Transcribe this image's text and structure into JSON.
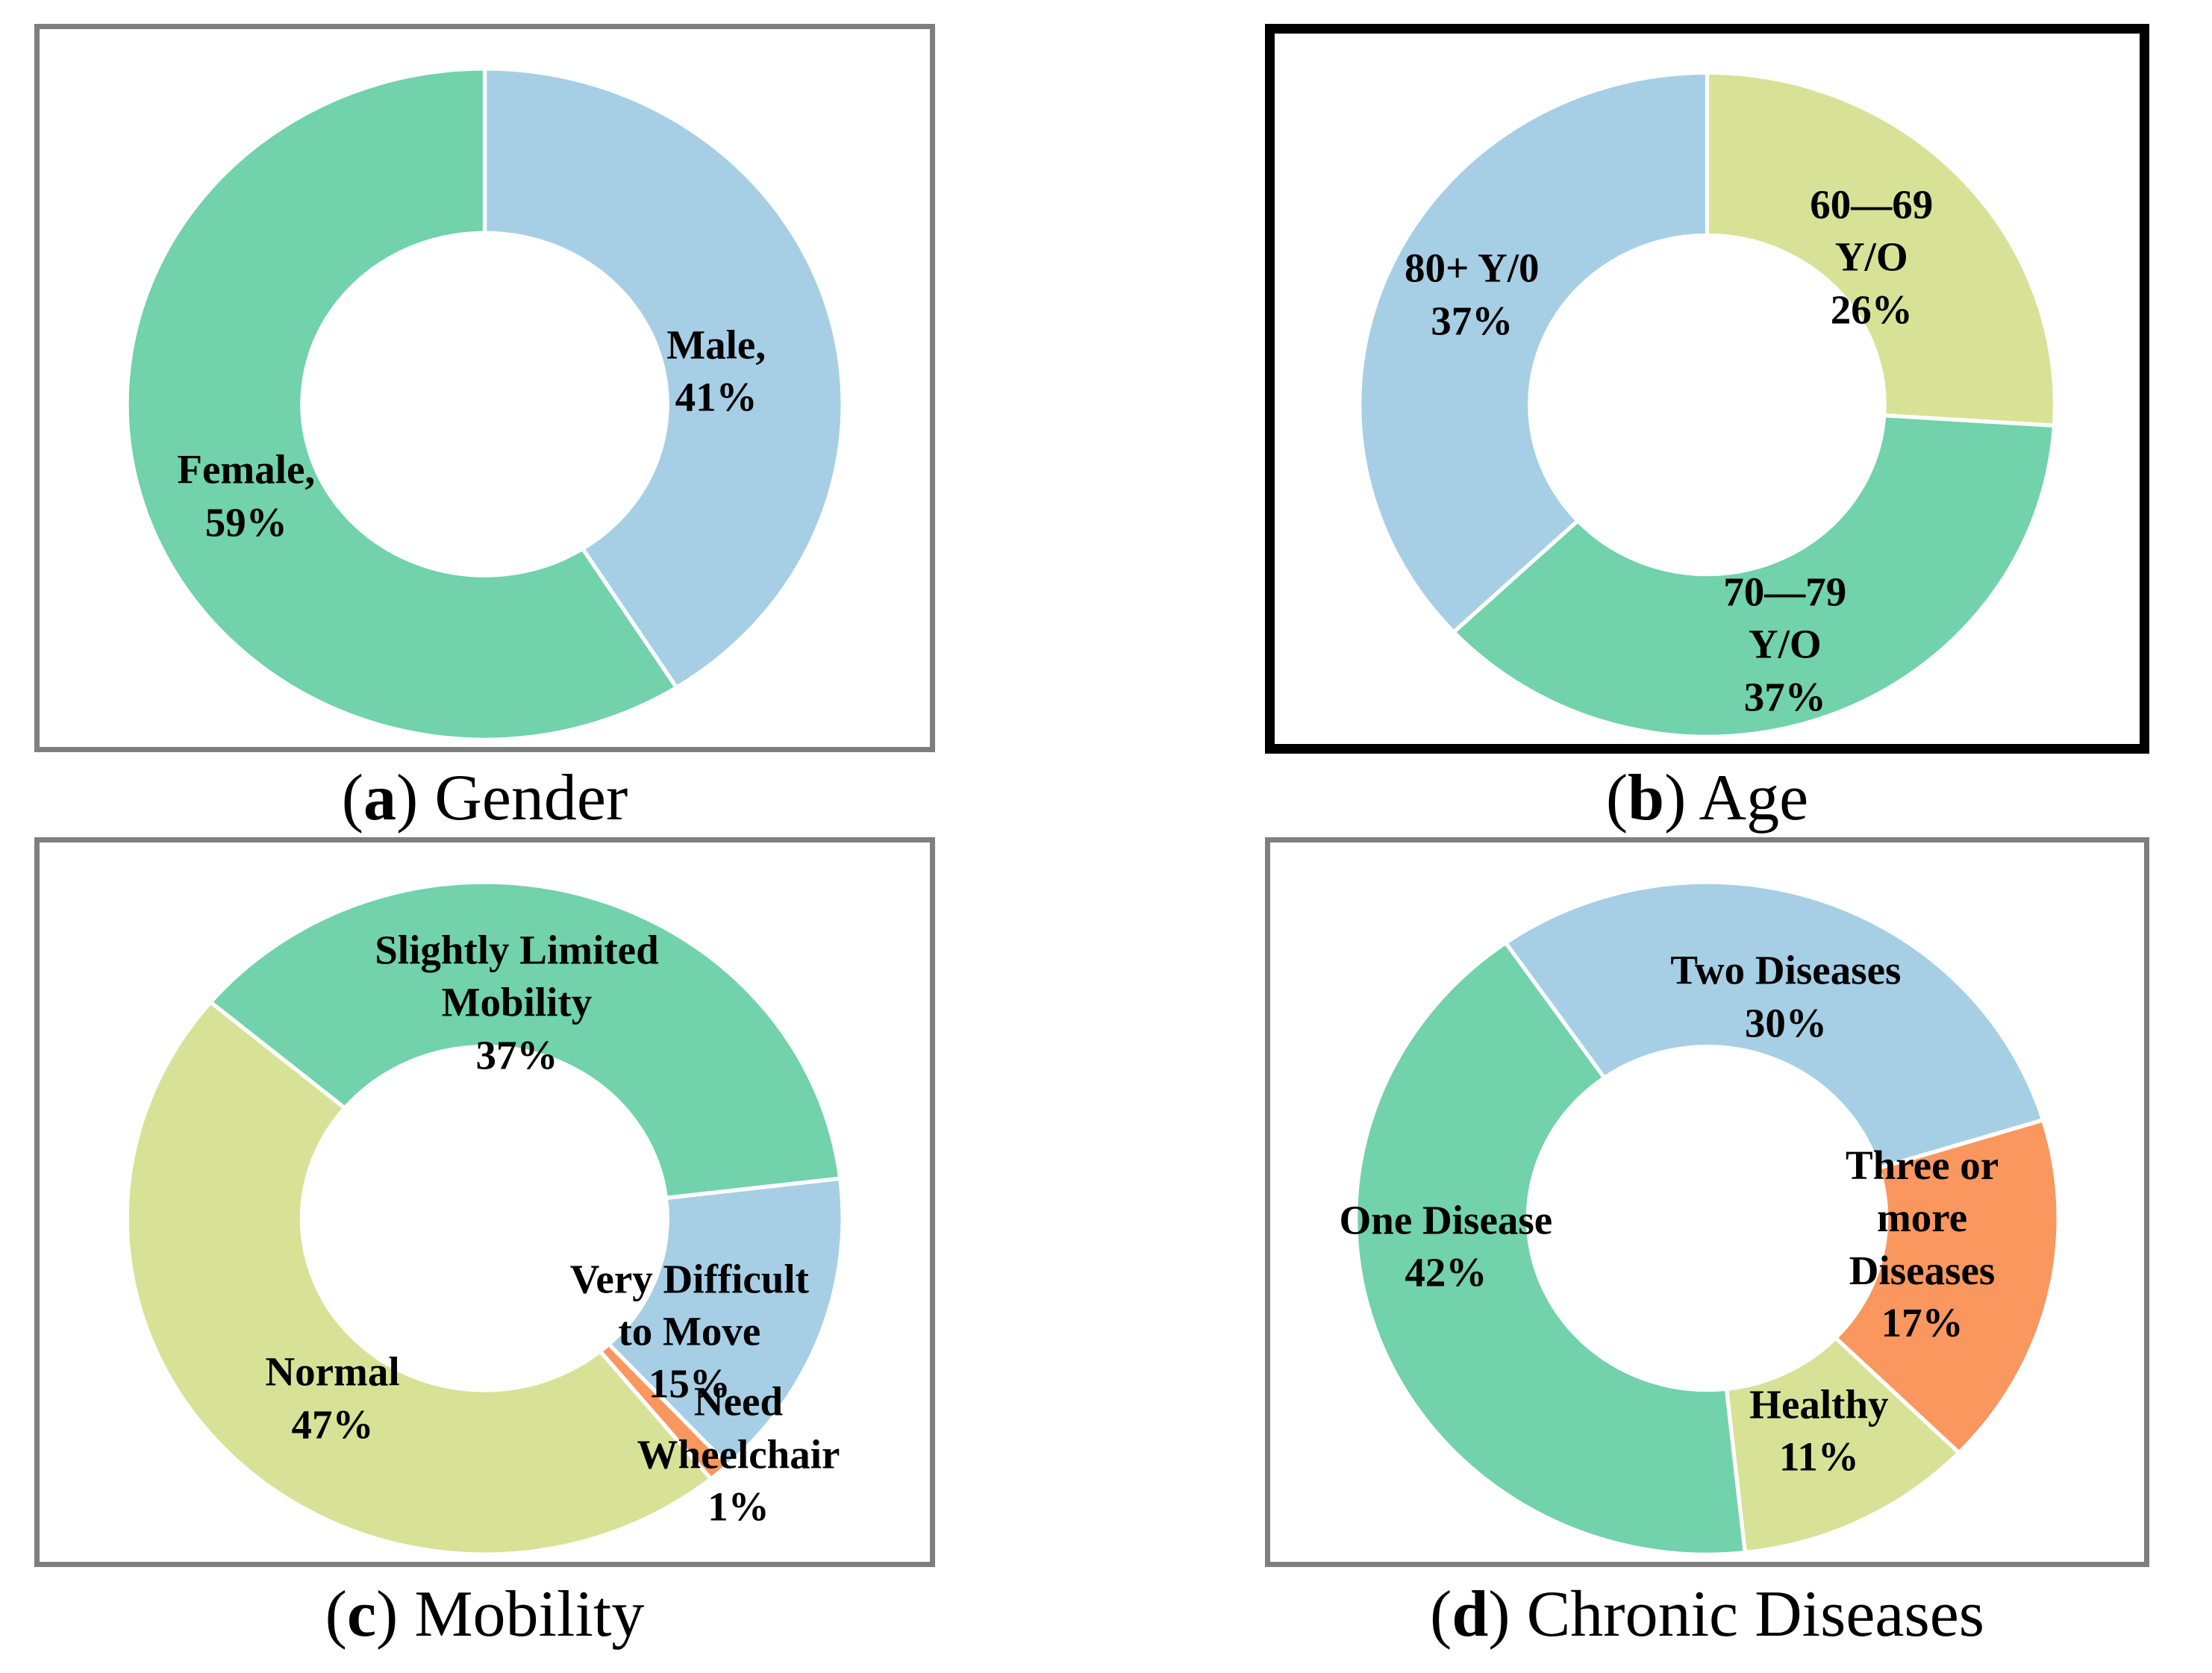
{
  "page": {
    "background": "#ffffff",
    "text_color": "#000000"
  },
  "palette": {
    "blue": "#A6CFE5",
    "green": "#71D2AB",
    "yellow_green": "#D8E297",
    "orange": "#F9975F",
    "frame_gray": "#7E7E7E",
    "frame_black": "#000000"
  },
  "chart_data": [
    {
      "id": "gender",
      "type": "pie",
      "donut": true,
      "title": "Gender",
      "caption": {
        "open": "(",
        "letter": "a",
        "close": ") ",
        "title": "Gender"
      },
      "frame": {
        "color": "#7E7E7E",
        "width": 7
      },
      "start_angle": 0,
      "hole_ratio": 0.51,
      "legend": "none",
      "segments": [
        {
          "label": "Male",
          "value_pct": 41,
          "color": "#A6CFE5",
          "label_lines": [
            "Male,",
            "41%"
          ],
          "label_xy": [
            0.76,
            0.477
          ]
        },
        {
          "label": "Female",
          "value_pct": 59,
          "color": "#71D2AB",
          "label_lines": [
            "Female,",
            "59%"
          ],
          "label_xy": [
            0.232,
            0.651
          ]
        }
      ]
    },
    {
      "id": "age",
      "type": "pie",
      "donut": true,
      "title": "Age",
      "caption": {
        "open": "(",
        "letter": "b",
        "close": ") ",
        "title": "Age"
      },
      "frame": {
        "color": "#000000",
        "width": 13
      },
      "start_angle": 0,
      "hole_ratio": 0.51,
      "legend": "none",
      "segments": [
        {
          "label": "60-69 Y/O",
          "value_pct": 26,
          "color": "#D8E297",
          "label_lines": [
            "60—69",
            "Y/O",
            "26%"
          ],
          "label_xy": [
            0.69,
            0.315
          ]
        },
        {
          "label": "70-79 Y/O",
          "value_pct": 37,
          "color": "#71D2AB",
          "label_lines": [
            "70—79",
            "Y/O",
            "37%"
          ],
          "label_xy": [
            0.59,
            0.86
          ]
        },
        {
          "label": "80+ Y/0",
          "value_pct": 37,
          "color": "#A6CFE5",
          "label_lines": [
            "80+ Y/0",
            "37%"
          ],
          "label_xy": [
            0.228,
            0.368
          ]
        }
      ]
    },
    {
      "id": "mobility",
      "type": "pie",
      "donut": true,
      "title": "Mobility",
      "caption": {
        "open": "(",
        "letter": "c",
        "close": ") ",
        "title": "Mobility"
      },
      "frame": {
        "color": "#7E7E7E",
        "width": 7
      },
      "start_angle": -50,
      "hole_ratio": 0.51,
      "legend": "none",
      "segments": [
        {
          "label": "Slightly Limited Mobility",
          "value_pct": 37,
          "color": "#71D2AB",
          "label_lines": [
            "Slightly Limited Mobility",
            "37%"
          ],
          "label_xy": [
            0.536,
            0.223
          ]
        },
        {
          "label": "Very Difficult to Move",
          "value_pct": 15,
          "color": "#A6CFE5",
          "label_lines": [
            "Very Difficult to Move",
            "15%"
          ],
          "label_xy": [
            0.73,
            0.68
          ]
        },
        {
          "label": "Need Wheelchair",
          "value_pct": 1,
          "color": "#F9975F",
          "label_lines": [
            "Need Wheelchair",
            "1%"
          ],
          "label_xy": [
            0.785,
            0.851
          ]
        },
        {
          "label": "Normal",
          "value_pct": 47,
          "color": "#D8E297",
          "label_lines": [
            "Normal",
            "47%"
          ],
          "label_xy": [
            0.329,
            0.773
          ]
        }
      ]
    },
    {
      "id": "chronic-diseases",
      "type": "pie",
      "donut": true,
      "title": "Chronic Diseases",
      "caption": {
        "open": "(",
        "letter": "d",
        "close": ") ",
        "title": "Chronic Diseases"
      },
      "frame": {
        "color": "#7E7E7E",
        "width": 7
      },
      "start_angle": -35,
      "hole_ratio": 0.51,
      "legend": "none",
      "segments": [
        {
          "label": "Two Diseases",
          "value_pct": 30,
          "color": "#A6CFE5",
          "label_lines": [
            "Two Diseases",
            "30%"
          ],
          "label_xy": [
            0.59,
            0.215
          ]
        },
        {
          "label": "Three or more Diseases",
          "value_pct": 17,
          "color": "#F9975F",
          "label_lines": [
            "Three or more Diseases",
            "17%"
          ],
          "label_xy": [
            0.746,
            0.559
          ]
        },
        {
          "label": "Healthy",
          "value_pct": 11,
          "color": "#D8E297",
          "label_lines": [
            "Healthy",
            "11%"
          ],
          "label_xy": [
            0.628,
            0.818
          ]
        },
        {
          "label": "One Disease",
          "value_pct": 42,
          "color": "#71D2AB",
          "label_lines": [
            "One Disease",
            "42%"
          ],
          "label_xy": [
            0.201,
            0.562
          ]
        }
      ]
    }
  ]
}
